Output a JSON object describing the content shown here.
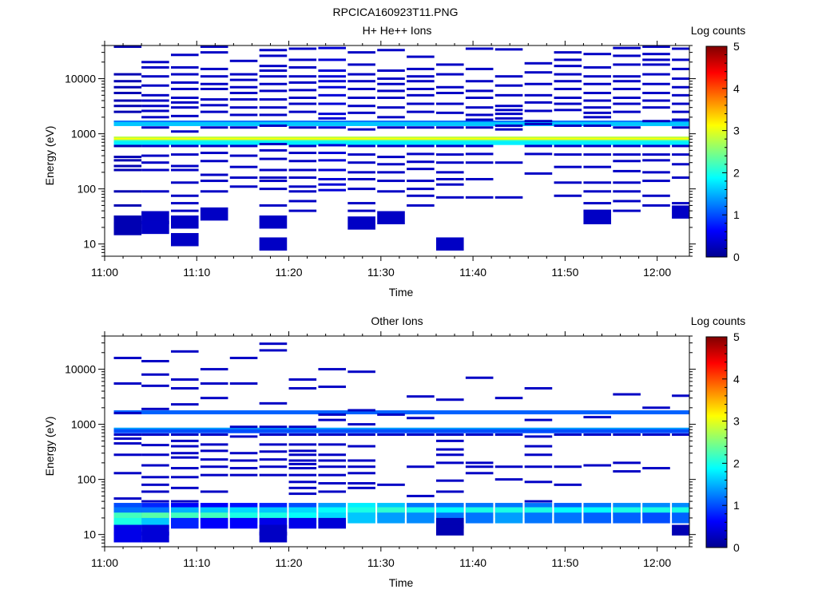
{
  "figure": {
    "title": "RPCICA160923T11.PNG"
  },
  "chart_data": [
    {
      "type": "heatmap",
      "title": "H+ He++ Ions",
      "xlabel": "Time",
      "ylabel": "Energy (eV)",
      "x_ticks": [
        "11:00",
        "11:10",
        "11:20",
        "11:30",
        "11:40",
        "11:50",
        "12:00"
      ],
      "x_range_minutes": [
        0,
        63.5
      ],
      "y_scale": "log",
      "y_ticks": [
        10,
        100,
        1000,
        10000
      ],
      "y_range": [
        6,
        40000
      ],
      "colorbar": {
        "label": "Log counts",
        "ticks": [
          0,
          1,
          2,
          3,
          4,
          5
        ],
        "range": [
          0,
          5
        ]
      },
      "time_bins_minutes": [
        2.5,
        5.5,
        8.7,
        11.9,
        15.1,
        18.3,
        21.5,
        24.7,
        27.9,
        31.1,
        34.3,
        37.5,
        40.7,
        43.9,
        47.1,
        50.3,
        53.5,
        56.7,
        59.9,
        63.1
      ],
      "persistent_bands": [
        {
          "energy": 1600,
          "level": 1.2
        },
        {
          "energy": 1500,
          "level": 1.6
        },
        {
          "energy": 820,
          "level": 2.8
        },
        {
          "energy": 770,
          "level": 3.1
        },
        {
          "energy": 720,
          "level": 2.3
        },
        {
          "energy": 680,
          "level": 1.8
        }
      ],
      "patches": [
        {
          "t": 2.5,
          "energies": [
            38000,
            12000,
            9000,
            7000,
            5500,
            4000,
            3200,
            2500,
            600,
            380,
            330,
            260,
            220,
            90,
            50,
            25,
            19
          ],
          "level": 0.2
        },
        {
          "t": 5.5,
          "energies": [
            20000,
            16000,
            11000,
            7500,
            5000,
            4000,
            3200,
            2600,
            2000,
            1300,
            600,
            400,
            300,
            220,
            90,
            30,
            20
          ],
          "level": 0.3
        },
        {
          "t": 8.7,
          "energies": [
            27000,
            16000,
            12000,
            8500,
            6500,
            4500,
            3700,
            3000,
            2100,
            1100,
            600,
            420,
            260,
            220,
            130,
            75,
            55,
            40,
            25,
            12
          ],
          "level": 0.3
        },
        {
          "t": 11.9,
          "energies": [
            38000,
            30000,
            15000,
            11000,
            8000,
            6500,
            4200,
            3300,
            2500,
            1300,
            600,
            450,
            320,
            180,
            140,
            90,
            35
          ],
          "level": 0.3
        },
        {
          "t": 15.1,
          "energies": [
            21000,
            12000,
            9500,
            7000,
            5500,
            4200,
            3000,
            2200,
            1300,
            600,
            400,
            250,
            160,
            110
          ],
          "level": 0.3
        },
        {
          "t": 18.3,
          "energies": [
            33000,
            26000,
            17000,
            14000,
            11000,
            8000,
            6000,
            4200,
            3000,
            2200,
            1400,
            650,
            500,
            350,
            220,
            160,
            140,
            100,
            50,
            25,
            10
          ],
          "level": 0.3
        },
        {
          "t": 21.5,
          "energies": [
            35000,
            22000,
            16000,
            11000,
            8500,
            6200,
            4500,
            3500,
            2500,
            1300,
            600,
            450,
            320,
            220,
            160,
            110,
            90,
            60,
            40
          ],
          "level": 0.3
        },
        {
          "t": 24.7,
          "energies": [
            36000,
            22000,
            14000,
            11000,
            9000,
            7000,
            5000,
            3500,
            2300,
            1900,
            1300,
            620,
            450,
            330,
            220,
            150,
            120,
            95
          ],
          "level": 0.4
        },
        {
          "t": 27.9,
          "energies": [
            30000,
            18000,
            12000,
            9000,
            6500,
            4500,
            3200,
            2400,
            1200,
            600,
            420,
            300,
            200,
            150,
            100,
            55,
            40,
            24
          ],
          "level": 0.3
        },
        {
          "t": 31.1,
          "energies": [
            33000,
            14000,
            10000,
            8000,
            6000,
            4500,
            3000,
            2000,
            1300,
            600,
            380,
            280,
            200,
            140,
            90,
            30
          ],
          "level": 0.3
        },
        {
          "t": 34.3,
          "energies": [
            25000,
            15000,
            11000,
            9000,
            6500,
            5000,
            3500,
            2500,
            1300,
            600,
            430,
            310,
            230,
            140,
            100,
            75,
            50
          ],
          "level": 0.3
        },
        {
          "t": 37.5,
          "energies": [
            18000,
            12000,
            7000,
            5500,
            3500,
            2400,
            1300,
            600,
            420,
            300,
            200,
            150,
            120,
            70,
            10
          ],
          "level": 0.3
        },
        {
          "t": 40.7,
          "energies": [
            35000,
            15000,
            9000,
            6000,
            4500,
            3000,
            2200,
            1800,
            1300,
            600,
            430,
            300,
            150,
            70
          ],
          "level": 0.3
        },
        {
          "t": 43.9,
          "energies": [
            34000,
            11000,
            7500,
            5000,
            3200,
            2700,
            2300,
            1900,
            1400,
            1200,
            300,
            70
          ],
          "level": 0.3
        },
        {
          "t": 47.1,
          "energies": [
            19000,
            13000,
            8000,
            5000,
            3700,
            2600,
            1700,
            1500,
            600,
            430,
            190
          ],
          "level": 0.3
        },
        {
          "t": 50.3,
          "energies": [
            30000,
            22000,
            17000,
            12000,
            9000,
            6500,
            4500,
            3500,
            2700,
            1400,
            600,
            420,
            250,
            130,
            75
          ],
          "level": 0.3
        },
        {
          "t": 53.5,
          "energies": [
            28000,
            16000,
            11000,
            8000,
            5500,
            4000,
            3000,
            2400,
            2000,
            1400,
            600,
            420,
            250,
            130,
            90,
            55,
            40,
            30
          ],
          "level": 0.3
        },
        {
          "t": 56.7,
          "energies": [
            36000,
            26000,
            18000,
            11000,
            9000,
            6500,
            4500,
            3500,
            2500,
            1300,
            600,
            420,
            320,
            210,
            130,
            90,
            60,
            40
          ],
          "level": 0.3
        },
        {
          "t": 59.9,
          "energies": [
            38000,
            28000,
            22000,
            18000,
            12000,
            8000,
            5500,
            4000,
            3000,
            1700,
            600,
            420,
            330,
            200,
            140,
            75,
            50
          ],
          "level": 0.3
        },
        {
          "t": 63.1,
          "energies": [
            35000,
            22000,
            15000,
            10000,
            7000,
            5000,
            3500,
            2500,
            1800,
            1300,
            600,
            420,
            280,
            160,
            55,
            38
          ],
          "level": 0.3
        }
      ]
    },
    {
      "type": "heatmap",
      "title": "Other Ions",
      "xlabel": "Time",
      "ylabel": "Energy (eV)",
      "x_ticks": [
        "11:00",
        "11:10",
        "11:20",
        "11:30",
        "11:40",
        "11:50",
        "12:00"
      ],
      "x_range_minutes": [
        0,
        63.5
      ],
      "y_scale": "log",
      "y_ticks": [
        10,
        100,
        1000,
        10000
      ],
      "y_range": [
        6,
        40000
      ],
      "colorbar": {
        "label": "Log counts",
        "ticks": [
          0,
          1,
          2,
          3,
          4,
          5
        ],
        "range": [
          0,
          5
        ]
      },
      "time_bins_minutes": [
        2.5,
        5.5,
        8.7,
        11.9,
        15.1,
        18.3,
        21.5,
        24.7,
        27.9,
        31.1,
        34.3,
        37.5,
        40.7,
        43.9,
        47.1,
        50.3,
        53.5,
        56.7,
        59.9,
        63.1
      ],
      "persistent_bands": [
        {
          "energy": 1650,
          "level": 1.1
        },
        {
          "energy": 800,
          "level": 1.4
        },
        {
          "energy": 750,
          "level": 1.0
        }
      ],
      "low_energy_profile": [
        {
          "energy": 30,
          "levels": [
            1.0,
            0.8,
            0.6,
            0.6,
            0.7,
            0.8,
            1.0,
            1.4,
            1.8,
            1.6,
            1.2,
            1.2,
            1.2,
            1.2,
            1.2,
            1.1,
            1.2,
            1.3,
            1.3,
            1.3
          ]
        },
        {
          "energy": 25,
          "levels": [
            1.2,
            1.2,
            1.5,
            1.6,
            1.7,
            1.6,
            1.7,
            1.9,
            2.0,
            2.1,
            2.0,
            1.9,
            2.0,
            2.0,
            2.0,
            1.9,
            1.9,
            2.0,
            2.0,
            2.0
          ]
        },
        {
          "energy": 20,
          "levels": [
            2.2,
            2.3,
            2.2,
            2.2,
            2.0,
            2.0,
            1.9,
            1.7,
            1.6,
            1.4,
            1.3,
            1.2,
            1.2,
            1.4,
            1.2,
            1.2,
            1.1,
            1.1,
            1.0,
            1.1
          ]
        },
        {
          "energy": 16,
          "levels": [
            2.0,
            1.6,
            0.8,
            0.6,
            0.6,
            0.5,
            0.5,
            0.4,
            0.0,
            0.0,
            0.0,
            0.2,
            0.0,
            0.0,
            0.0,
            0.0,
            0.0,
            0.0,
            0.0,
            0.0
          ]
        },
        {
          "energy": 12,
          "levels": [
            0.5,
            0.4,
            0.0,
            0.0,
            0.0,
            0.3,
            0.0,
            0.0,
            0.0,
            0.0,
            0.0,
            0.2,
            0.0,
            0.0,
            0.0,
            0.0,
            0.0,
            0.0,
            0.0,
            0.2
          ]
        },
        {
          "energy": 9,
          "levels": [
            0.5,
            0.4,
            0.0,
            0.0,
            0.0,
            0.3,
            0.0,
            0.0,
            0.0,
            0.0,
            0.0,
            0.0,
            0.0,
            0.0,
            0.0,
            0.0,
            0.0,
            0.0,
            0.0,
            0.0
          ]
        }
      ],
      "patches": [
        {
          "t": 2.5,
          "energies": [
            16000,
            5500,
            1600,
            650,
            550,
            450,
            280,
            130,
            45
          ],
          "level": 0.3
        },
        {
          "t": 5.5,
          "energies": [
            14000,
            8000,
            5000,
            1900,
            650,
            420,
            280,
            180,
            110,
            80,
            60,
            40
          ],
          "level": 0.3
        },
        {
          "t": 8.7,
          "energies": [
            21000,
            6500,
            4500,
            2300,
            650,
            500,
            400,
            300,
            250,
            160,
            110,
            70,
            40
          ],
          "level": 0.3
        },
        {
          "t": 11.9,
          "energies": [
            10000,
            5500,
            3000,
            650,
            430,
            330,
            230,
            170,
            120,
            60
          ],
          "level": 0.3
        },
        {
          "t": 15.1,
          "energies": [
            16000,
            5500,
            900,
            600,
            300,
            220,
            160,
            120
          ],
          "level": 0.3
        },
        {
          "t": 18.3,
          "energies": [
            29000,
            22000,
            2400,
            900,
            650,
            430,
            320,
            230,
            170,
            120
          ],
          "level": 0.3
        },
        {
          "t": 21.5,
          "energies": [
            6500,
            4500,
            900,
            650,
            430,
            330,
            280,
            220,
            190,
            160,
            120,
            90,
            70,
            55
          ],
          "level": 0.3
        },
        {
          "t": 24.7,
          "energies": [
            10000,
            4800,
            1500,
            1200,
            650,
            430,
            280,
            220,
            170,
            120,
            85,
            60
          ],
          "level": 0.3
        },
        {
          "t": 27.9,
          "energies": [
            9000,
            1800,
            1000,
            650,
            400,
            220,
            170,
            130,
            85,
            70
          ],
          "level": 0.3
        },
        {
          "t": 31.1,
          "energies": [
            1500,
            650,
            80
          ],
          "level": 0.3
        },
        {
          "t": 34.3,
          "energies": [
            3200,
            1300,
            650,
            170,
            50
          ],
          "level": 0.3
        },
        {
          "t": 37.5,
          "energies": [
            2800,
            650,
            500,
            350,
            280,
            200,
            95,
            60
          ],
          "level": 0.3
        },
        {
          "t": 40.7,
          "energies": [
            7000,
            650,
            200,
            170,
            130
          ],
          "level": 0.3
        },
        {
          "t": 43.9,
          "energies": [
            3000,
            650,
            170,
            100
          ],
          "level": 0.3
        },
        {
          "t": 47.1,
          "energies": [
            4500,
            1200,
            600,
            400,
            280,
            170,
            90,
            40
          ],
          "level": 0.3
        },
        {
          "t": 50.3,
          "energies": [
            650,
            170,
            80
          ],
          "level": 0.3
        },
        {
          "t": 53.5,
          "energies": [
            1350,
            650,
            180
          ],
          "level": 0.3
        },
        {
          "t": 56.7,
          "energies": [
            3500,
            650,
            200,
            140
          ],
          "level": 0.3
        },
        {
          "t": 59.9,
          "energies": [
            2000,
            650,
            160
          ],
          "level": 0.3
        },
        {
          "t": 63.1,
          "energies": [
            3300,
            650
          ],
          "level": 0.3
        }
      ]
    }
  ]
}
